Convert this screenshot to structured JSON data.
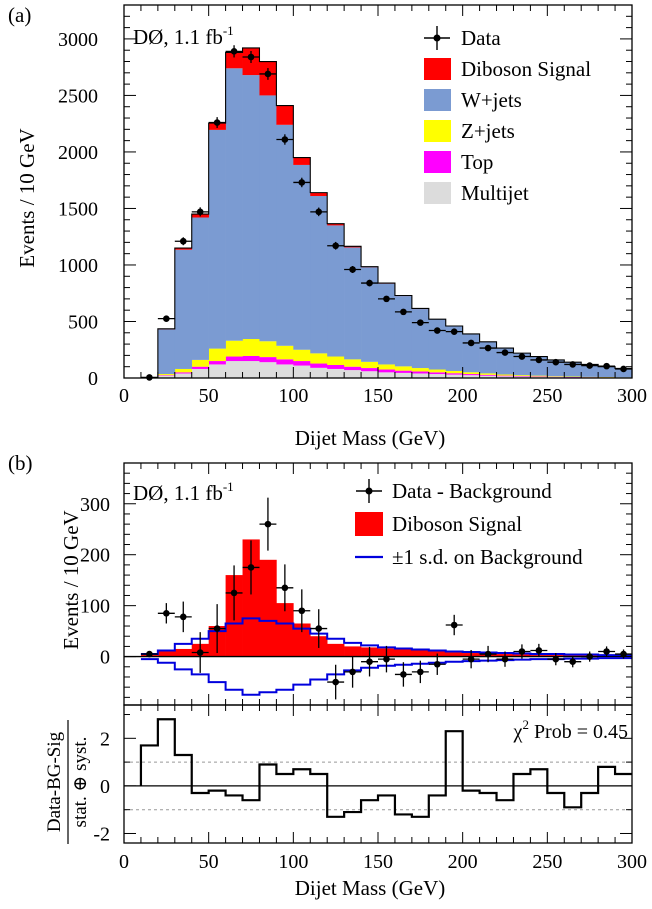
{
  "chart_data": [
    {
      "panel_label": "(a)",
      "type": "bar",
      "stacked": true,
      "annotation": "DØ, 1.1 fb",
      "annotation_superscript": "-1",
      "xlabel": "Dijet Mass (GeV)",
      "ylabel": "Events / 10 GeV",
      "xlim": [
        0,
        300
      ],
      "ylim": [
        0,
        3300
      ],
      "x_ticks": [
        0,
        50,
        100,
        150,
        200,
        250,
        300
      ],
      "y_ticks": [
        0,
        500,
        1000,
        1500,
        2000,
        2500,
        3000
      ],
      "bin_width": 10,
      "bin_low_edges": [
        20,
        30,
        40,
        50,
        60,
        70,
        80,
        90,
        100,
        110,
        120,
        130,
        140,
        150,
        160,
        170,
        180,
        190,
        200,
        210,
        220,
        230,
        240,
        250,
        260,
        270,
        280,
        290
      ],
      "legend": [
        "Data",
        "Diboson Signal",
        "W+jets",
        "Z+jets",
        "Top",
        "Multijet"
      ],
      "colors": {
        "Diboson Signal": "#ff0000",
        "W+jets": "#7b9bd2",
        "Z+jets": "#ffff00",
        "Top": "#ff00ff",
        "Multijet": "#dcdcdc"
      },
      "series": [
        {
          "name": "Multijet",
          "values": [
            20,
            40,
            80,
            120,
            150,
            150,
            140,
            120,
            110,
            90,
            80,
            70,
            60,
            50,
            45,
            40,
            35,
            30,
            25,
            20,
            15,
            12,
            10,
            8,
            6,
            5,
            4,
            3
          ]
        },
        {
          "name": "Top",
          "values": [
            5,
            10,
            20,
            30,
            40,
            45,
            45,
            45,
            40,
            38,
            35,
            30,
            28,
            25,
            20,
            18,
            15,
            12,
            10,
            8,
            6,
            5,
            4,
            3,
            3,
            2,
            2,
            1
          ]
        },
        {
          "name": "Z+jets",
          "values": [
            10,
            30,
            60,
            110,
            140,
            150,
            140,
            120,
            100,
            90,
            75,
            65,
            55,
            45,
            38,
            30,
            25,
            20,
            16,
            13,
            10,
            8,
            7,
            5,
            4,
            3,
            3,
            2
          ]
        },
        {
          "name": "W+jets",
          "values": [
            395,
            1055,
            1260,
            1935,
            2410,
            2335,
            2175,
            1955,
            1635,
            1392,
            1160,
            990,
            837,
            715,
            622,
            522,
            445,
            398,
            339,
            279,
            234,
            195,
            169,
            144,
            127,
            110,
            91,
            79
          ]
        },
        {
          "name": "Diboson Signal",
          "values": [
            5,
            15,
            30,
            60,
            140,
            240,
            300,
            170,
            65,
            30,
            15,
            10,
            5,
            5,
            5,
            5,
            0,
            0,
            0,
            0,
            0,
            0,
            0,
            0,
            0,
            0,
            0,
            0
          ]
        }
      ],
      "data_points": {
        "x": [
          15,
          25,
          35,
          45,
          55,
          65,
          75,
          85,
          95,
          105,
          115,
          125,
          135,
          145,
          155,
          165,
          175,
          185,
          195,
          205,
          215,
          225,
          235,
          245,
          255,
          265,
          275,
          285,
          295
        ],
        "y": [
          5,
          525,
          1210,
          1470,
          2260,
          2890,
          2840,
          2690,
          2110,
          1730,
          1470,
          1170,
          960,
          840,
          700,
          585,
          490,
          420,
          410,
          310,
          265,
          225,
          190,
          160,
          140,
          120,
          110,
          105,
          80
        ],
        "yerr": [
          3,
          25,
          35,
          40,
          48,
          54,
          53,
          52,
          46,
          42,
          38,
          34,
          31,
          29,
          26,
          24,
          22,
          21,
          20,
          18,
          16,
          15,
          14,
          13,
          12,
          11,
          10,
          10,
          9
        ]
      }
    },
    {
      "panel_label": "(b)",
      "type": "bar",
      "annotation": "DØ, 1.1 fb",
      "annotation_superscript": "-1",
      "xlabel": "",
      "ylabel": "Events / 10 GeV",
      "xlim": [
        0,
        300
      ],
      "ylim": [
        -95,
        380
      ],
      "y_ticks": [
        0,
        100,
        200,
        300
      ],
      "bin_width": 10,
      "bin_low_edges": [
        10,
        20,
        30,
        40,
        50,
        60,
        70,
        80,
        90,
        100,
        110,
        120,
        130,
        140,
        150,
        160,
        170,
        180,
        190,
        200,
        210,
        220,
        230,
        240,
        250,
        260,
        270,
        280,
        290
      ],
      "legend": [
        "Data - Background",
        "Diboson Signal",
        "±1 s.d. on Background"
      ],
      "colors": {
        "Diboson Signal": "#ff0000",
        "±1 s.d. on Background": "#0000dd"
      },
      "signal": [
        3,
        10,
        15,
        25,
        60,
        160,
        230,
        190,
        105,
        65,
        40,
        25,
        20,
        18,
        16,
        14,
        12,
        10,
        8,
        7,
        6,
        5,
        4,
        3,
        3,
        2,
        2,
        1,
        1
      ],
      "band_upper": [
        5,
        12,
        25,
        35,
        50,
        65,
        75,
        70,
        65,
        55,
        45,
        35,
        27,
        22,
        18,
        16,
        14,
        12,
        10,
        9,
        8,
        7,
        6,
        5,
        5,
        4,
        4,
        3,
        3
      ],
      "band_lower": [
        -5,
        -12,
        -25,
        -35,
        -50,
        -65,
        -75,
        -70,
        -65,
        -55,
        -45,
        -35,
        -27,
        -22,
        -18,
        -16,
        -14,
        -12,
        -10,
        -9,
        -8,
        -7,
        -6,
        -5,
        -5,
        -4,
        -4,
        -3,
        -3
      ],
      "data_points": {
        "x": [
          15,
          25,
          35,
          45,
          55,
          65,
          75,
          85,
          95,
          105,
          115,
          125,
          135,
          145,
          155,
          165,
          175,
          185,
          195,
          205,
          215,
          225,
          235,
          245,
          255,
          265,
          275,
          285,
          295
        ],
        "y": [
          5,
          85,
          78,
          8,
          55,
          125,
          175,
          260,
          135,
          90,
          55,
          -50,
          -30,
          -10,
          -5,
          -35,
          -30,
          -15,
          62,
          -5,
          5,
          -5,
          10,
          12,
          -5,
          -10,
          0,
          10,
          5
        ],
        "yerr": [
          5,
          20,
          30,
          40,
          48,
          54,
          53,
          52,
          46,
          42,
          38,
          34,
          31,
          29,
          26,
          24,
          22,
          21,
          20,
          18,
          16,
          15,
          14,
          13,
          12,
          11,
          10,
          10,
          9
        ]
      }
    },
    {
      "panel_label": "",
      "type": "line",
      "step": true,
      "annotation": "χ",
      "annotation_superscript": "2",
      "annotation_rest": " Prob = 0.45",
      "xlabel": "Dijet Mass (GeV)",
      "ylabel_top": "Data-BG-Sig",
      "ylabel_bottom": "stat. ⊕ syst.",
      "xlim": [
        0,
        300
      ],
      "ylim": [
        -2.4,
        3.4
      ],
      "x_ticks": [
        0,
        50,
        100,
        150,
        200,
        250,
        300
      ],
      "y_ticks": [
        -2,
        0,
        2
      ],
      "reference_lines": [
        1,
        -1
      ],
      "bin_width": 10,
      "bin_low_edges": [
        10,
        20,
        30,
        40,
        50,
        60,
        70,
        80,
        90,
        100,
        110,
        120,
        130,
        140,
        150,
        160,
        170,
        180,
        190,
        200,
        210,
        220,
        230,
        240,
        250,
        260,
        270,
        280,
        290
      ],
      "values": [
        1.7,
        2.8,
        1.3,
        -0.3,
        -0.2,
        -0.4,
        -0.6,
        0.9,
        0.5,
        0.7,
        0.5,
        -1.3,
        -1.1,
        -0.6,
        -0.4,
        -1.2,
        -1.3,
        -0.4,
        2.3,
        -0.2,
        -0.3,
        -0.6,
        0.5,
        0.7,
        -0.3,
        -0.9,
        -0.3,
        0.8,
        0.5
      ]
    }
  ]
}
